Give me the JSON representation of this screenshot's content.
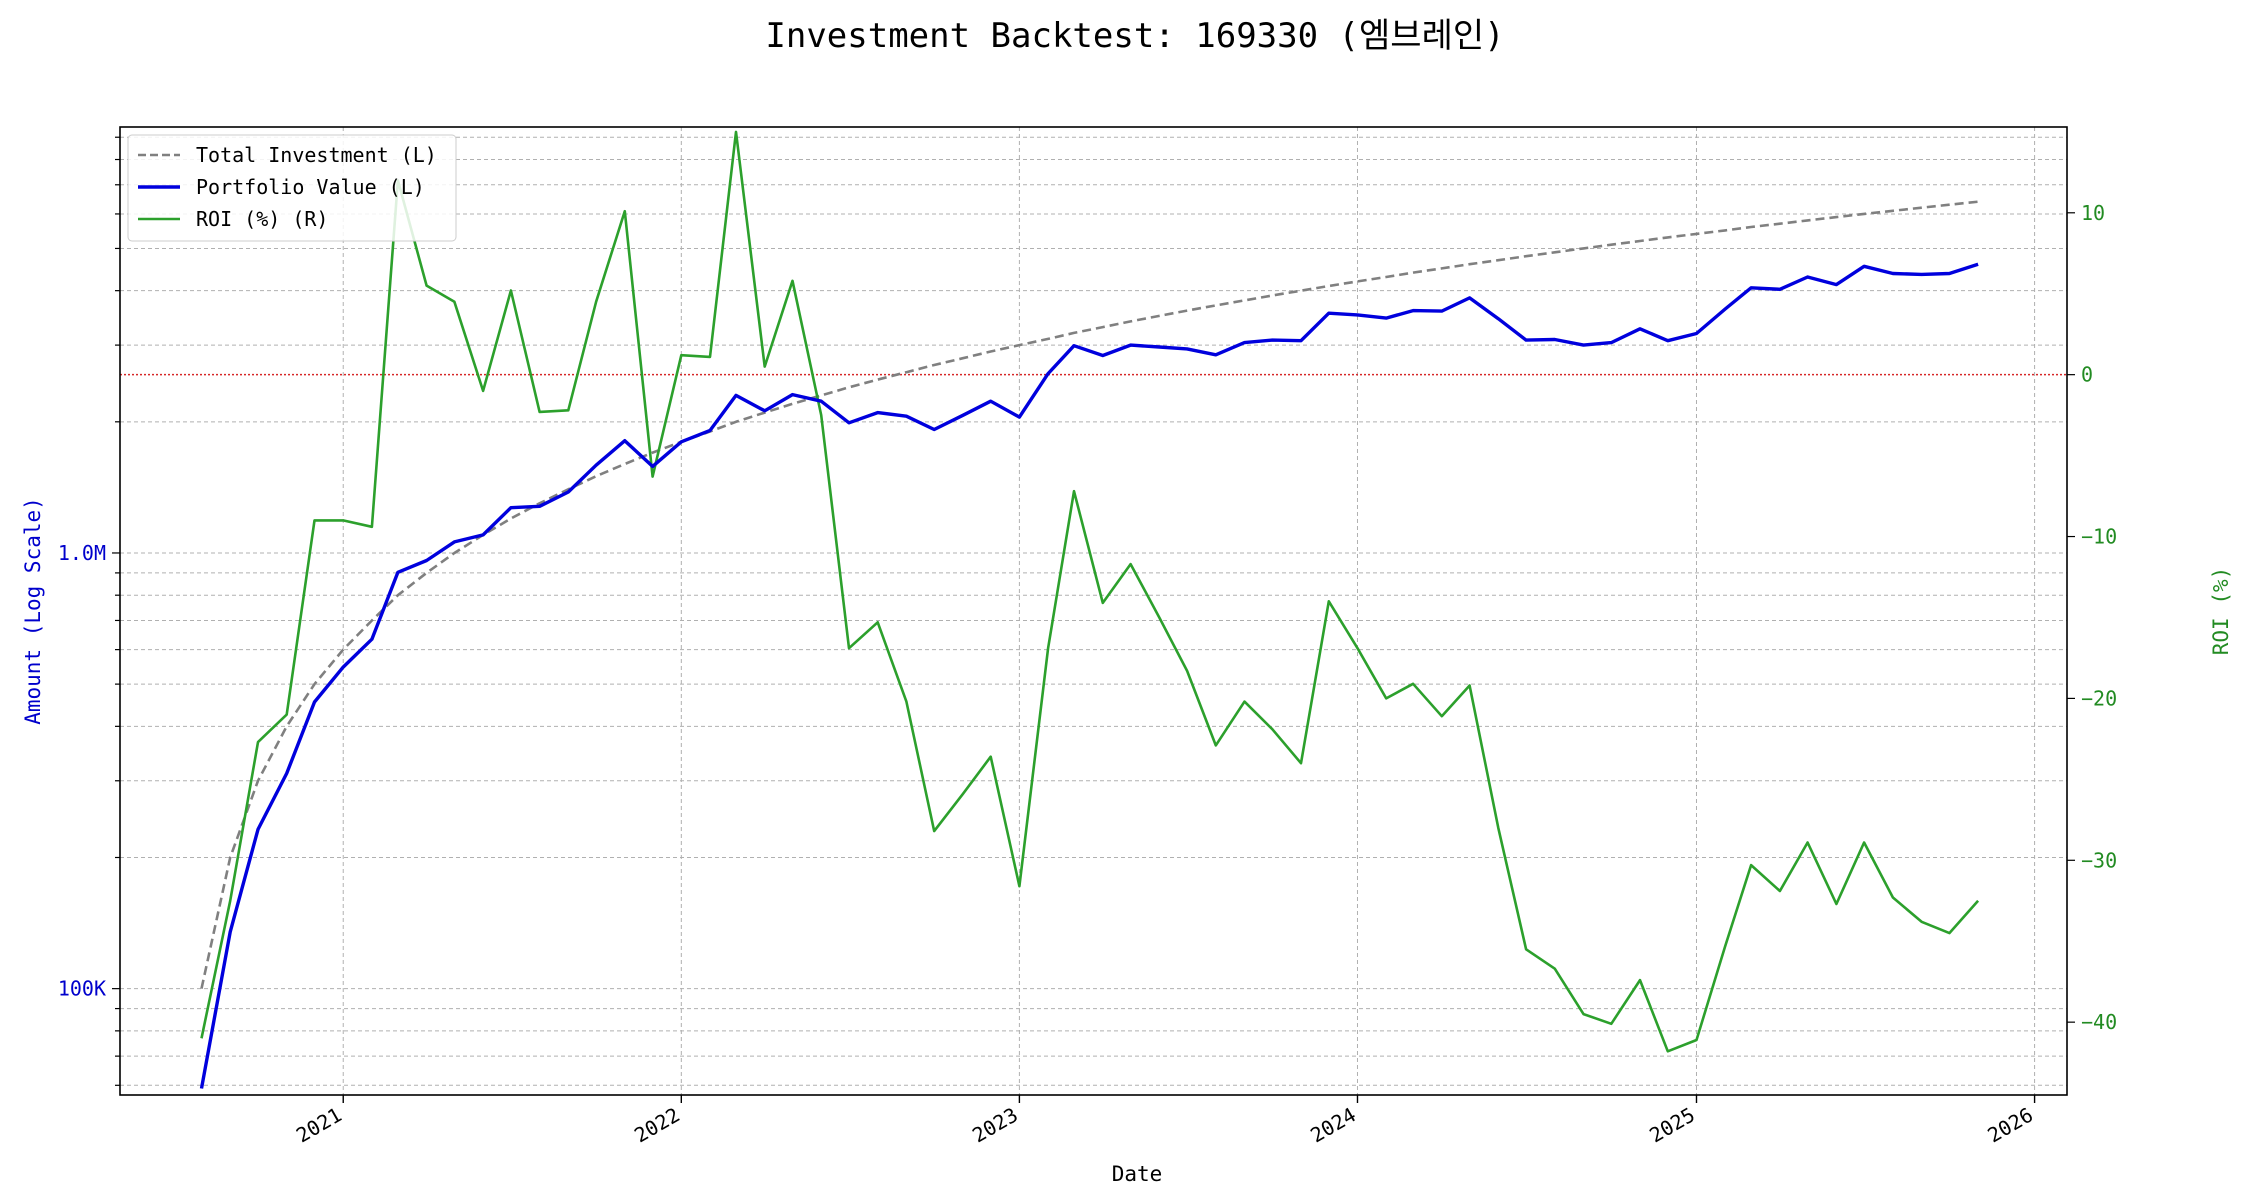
{
  "chart_data": {
    "type": "line",
    "title": "Investment Backtest: 169330 (엠브레인)",
    "xlabel": "Date",
    "ylabel_left": "Amount (Log Scale)",
    "ylabel_right": "ROI (%)",
    "left_scale": "log",
    "left_ylim": [
      57000,
      9500000
    ],
    "right_ylim": [
      -44.5,
      15.3
    ],
    "xlim": [
      "2020-05-05",
      "2026-02-05"
    ],
    "x_ticks": [
      {
        "date": "2021-01-01",
        "label": "2021"
      },
      {
        "date": "2022-01-01",
        "label": "2022"
      },
      {
        "date": "2023-01-01",
        "label": "2023"
      },
      {
        "date": "2024-01-01",
        "label": "2024"
      },
      {
        "date": "2025-01-01",
        "label": "2025"
      },
      {
        "date": "2026-01-01",
        "label": "2026"
      }
    ],
    "left_ticks": [
      {
        "value": 100000,
        "label": "100K"
      },
      {
        "value": 1000000,
        "label": "1.0M"
      }
    ],
    "right_ticks": [
      {
        "value": 10,
        "label": "10"
      },
      {
        "value": 0,
        "label": "0"
      },
      {
        "value": -10,
        "label": "−10"
      },
      {
        "value": -20,
        "label": "−20"
      },
      {
        "value": -30,
        "label": "−30"
      },
      {
        "value": -40,
        "label": "−40"
      }
    ],
    "reference_line": {
      "axis": "right",
      "value": 0,
      "color": "#d62728",
      "style": "dotted"
    },
    "grid": true,
    "legend_position": "top-left",
    "x": [
      "2020-08-01",
      "2020-09-01",
      "2020-10-01",
      "2020-11-01",
      "2020-12-01",
      "2021-01-01",
      "2021-02-01",
      "2021-03-01",
      "2021-04-01",
      "2021-05-01",
      "2021-06-01",
      "2021-07-01",
      "2021-08-01",
      "2021-09-01",
      "2021-10-01",
      "2021-11-01",
      "2021-12-01",
      "2022-01-01",
      "2022-02-01",
      "2022-03-01",
      "2022-04-01",
      "2022-05-01",
      "2022-06-01",
      "2022-07-01",
      "2022-08-01",
      "2022-09-01",
      "2022-10-01",
      "2022-11-01",
      "2022-12-01",
      "2023-01-01",
      "2023-02-01",
      "2023-03-01",
      "2023-04-01",
      "2023-05-01",
      "2023-06-01",
      "2023-07-01",
      "2023-08-01",
      "2023-09-01",
      "2023-10-01",
      "2023-11-01",
      "2023-12-01",
      "2024-01-01",
      "2024-02-01",
      "2024-03-01",
      "2024-04-01",
      "2024-05-01",
      "2024-06-01",
      "2024-07-01",
      "2024-08-01",
      "2024-09-01",
      "2024-10-01",
      "2024-11-01",
      "2024-12-01",
      "2025-01-01",
      "2025-02-01",
      "2025-03-01",
      "2025-04-01",
      "2025-05-01",
      "2025-06-01",
      "2025-07-01",
      "2025-08-01",
      "2025-09-01",
      "2025-10-01",
      "2025-11-01"
    ],
    "series": [
      {
        "name": "Total Investment (L)",
        "axis": "left",
        "color": "#808080",
        "style": "dashed",
        "values": [
          100000,
          200000,
          300000,
          400000,
          500000,
          600000,
          700000,
          800000,
          900000,
          1000000,
          1100000,
          1200000,
          1300000,
          1400000,
          1500000,
          1600000,
          1700000,
          1800000,
          1900000,
          2000000,
          2100000,
          2200000,
          2300000,
          2400000,
          2500000,
          2600000,
          2700000,
          2800000,
          2900000,
          3000000,
          3100000,
          3200000,
          3300000,
          3400000,
          3500000,
          3600000,
          3700000,
          3800000,
          3900000,
          4000000,
          4100000,
          4200000,
          4300000,
          4400000,
          4500000,
          4600000,
          4700000,
          4800000,
          4900000,
          5000000,
          5100000,
          5200000,
          5300000,
          5400000,
          5500000,
          5600000,
          5700000,
          5800000,
          5900000,
          6000000,
          6100000,
          6200000,
          6300000,
          6400000
        ]
      },
      {
        "name": "Portfolio Value (L)",
        "axis": "left",
        "color": "#0000dd",
        "style": "solid",
        "values": [
          59000,
          135000,
          232000,
          312000,
          455000,
          547000,
          634000,
          903000,
          961000,
          1060000,
          1100000,
          1270000,
          1280000,
          1380000,
          1590000,
          1810000,
          1580000,
          1800000,
          1910000,
          2300000,
          2120000,
          2310000,
          2230000,
          1990000,
          2100000,
          2060000,
          1920000,
          2070000,
          2230000,
          2050000,
          2580000,
          2990000,
          2840000,
          3000000,
          2970000,
          2940000,
          2850000,
          3040000,
          3080000,
          3070000,
          3550000,
          3520000,
          3460000,
          3600000,
          3590000,
          3850000,
          3450000,
          3080000,
          3090000,
          3000000,
          3040000,
          3270000,
          3070000,
          3190000,
          3630000,
          4060000,
          4030000,
          4300000,
          4130000,
          4550000,
          4380000,
          4360000,
          4380000,
          4600000
        ]
      },
      {
        "name": "ROI (%) (R)",
        "axis": "right",
        "color": "#2ca02c",
        "style": "solid",
        "values": [
          -41.0,
          -32.5,
          -22.7,
          -21.0,
          -9.0,
          -9.0,
          -9.4,
          12.0,
          5.5,
          4.5,
          -1.0,
          5.2,
          -2.3,
          -2.2,
          4.5,
          10.1,
          -6.3,
          1.2,
          1.1,
          15.0,
          0.5,
          5.8,
          -2.5,
          -16.9,
          -15.3,
          -20.2,
          -28.2,
          -25.9,
          -23.6,
          -31.6,
          -16.9,
          -7.2,
          -14.1,
          -11.7,
          -15.0,
          -18.3,
          -22.9,
          -20.2,
          -21.9,
          -24.0,
          -14.0,
          -16.9,
          -20.0,
          -19.1,
          -21.1,
          -19.2,
          -28.0,
          -35.5,
          -36.7,
          -39.5,
          -40.1,
          -37.4,
          -41.8,
          -41.1,
          -35.3,
          -30.3,
          -31.9,
          -28.9,
          -32.7,
          -28.9,
          -32.3,
          -33.8,
          -34.5,
          -32.5
        ]
      }
    ]
  }
}
